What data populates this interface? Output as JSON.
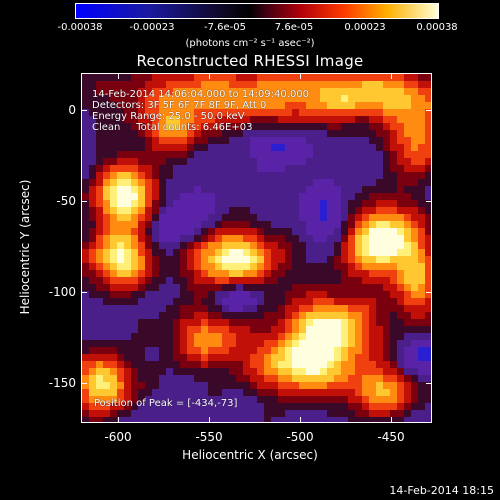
{
  "colorbar": {
    "ticks": [
      "-0.00038",
      "-0.00023",
      "-7.6e-05",
      "7.6e-05",
      "0.00023",
      "0.00038"
    ],
    "unit_text": "(photons cm⁻² s⁻¹ asec⁻²)"
  },
  "title": "Reconstructed RHESSI Image",
  "annotations": {
    "time_range": "14-Feb-2014 14:06:04.000 to 14:09:40.000",
    "detectors": "Detectors: 3F 5F 6F 7F 8F 9F, Att 0",
    "energy": "Energy Range: 25.0 - 50.0 keV",
    "method": "Clean     Total counts: 6.46E+03",
    "peak": "Position of Peak = [-434,-73]"
  },
  "axes": {
    "xlabel": "Heliocentric X (arcsec)",
    "ylabel": "Heliocentric Y (arcsec)",
    "xticks": [
      "-600",
      "-550",
      "-500",
      "-450"
    ],
    "yticks": [
      "0",
      "-50",
      "-100",
      "-150"
    ]
  },
  "footer": {
    "datestamp": "14-Feb-2014 18:15"
  },
  "colors": {
    "background": "#000000",
    "low": "#4a1f8a",
    "high": "#ffffe0"
  }
}
